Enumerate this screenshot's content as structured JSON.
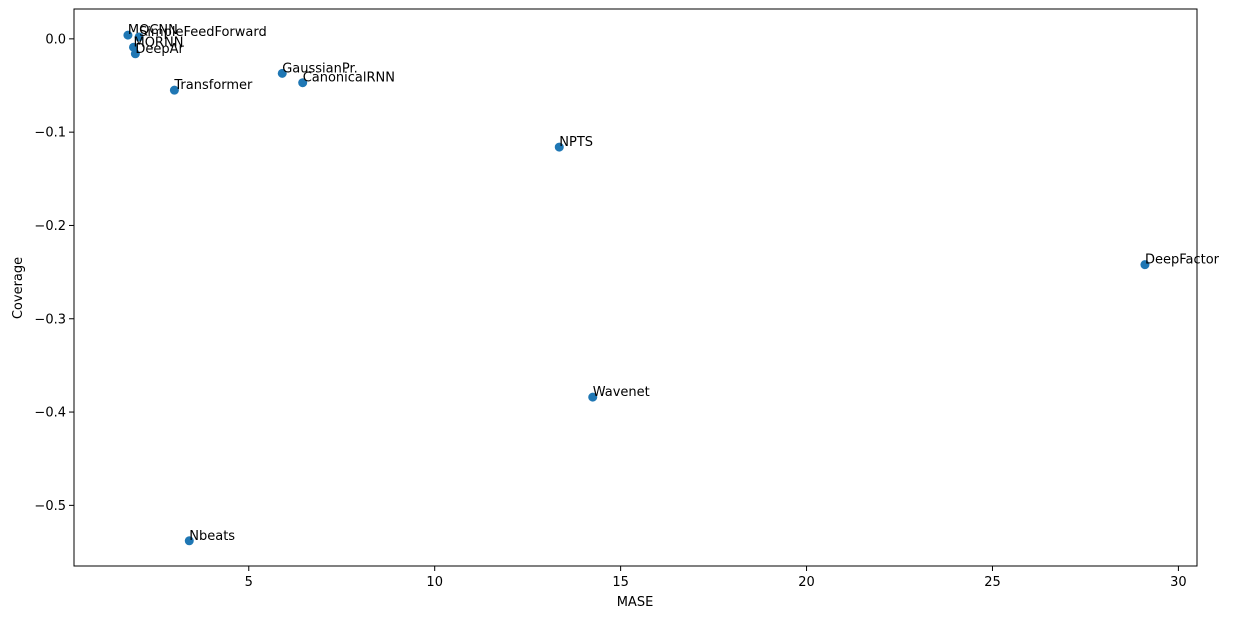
{
  "chart_data": {
    "type": "scatter",
    "title": "",
    "xlabel": "MASE",
    "ylabel": "Coverage",
    "xlim": [
      0.3,
      30.5
    ],
    "ylim": [
      -0.565,
      0.032
    ],
    "xticks": [
      5,
      10,
      15,
      20,
      25,
      30
    ],
    "yticks": [
      0.0,
      -0.1,
      -0.2,
      -0.3,
      -0.4,
      -0.5
    ],
    "ytick_labels": [
      "0.0",
      "−0.1",
      "−0.2",
      "−0.3",
      "−0.4",
      "−0.5"
    ],
    "grid": false,
    "legend": "none",
    "marker_color": "#1f77b4",
    "points": [
      {
        "label": "MQCNN",
        "x": 1.75,
        "y": 0.004
      },
      {
        "label": "SimpleFeedForward",
        "x": 2.05,
        "y": 0.002
      },
      {
        "label": "MQRNN",
        "x": 1.9,
        "y": -0.009
      },
      {
        "label": "DeepAr",
        "x": 1.95,
        "y": -0.016
      },
      {
        "label": "Transformer",
        "x": 3.0,
        "y": -0.055
      },
      {
        "label": "GaussianPr.",
        "x": 5.9,
        "y": -0.037
      },
      {
        "label": "CanonicalRNN",
        "x": 6.45,
        "y": -0.047
      },
      {
        "label": "NPTS",
        "x": 13.35,
        "y": -0.116
      },
      {
        "label": "DeepFactor",
        "x": 29.1,
        "y": -0.242
      },
      {
        "label": "Wavenet",
        "x": 14.25,
        "y": -0.384
      },
      {
        "label": "Nbeats",
        "x": 3.4,
        "y": -0.538
      }
    ]
  }
}
